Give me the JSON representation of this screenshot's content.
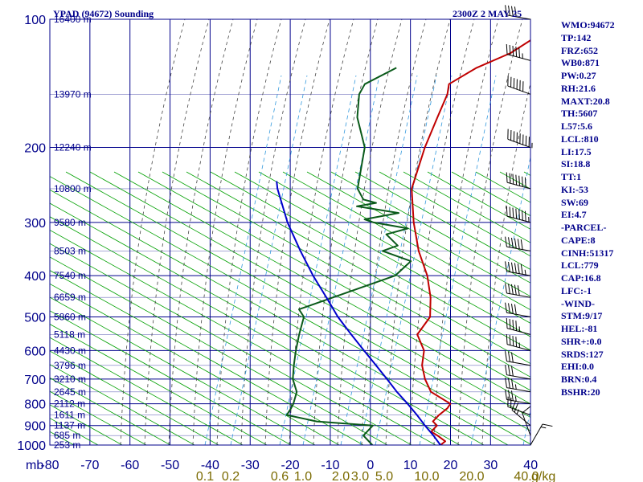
{
  "header": {
    "title": "YPAD (94672) Sounding",
    "time": "2300Z  2 MAY 25"
  },
  "stats": [
    "WMO:94672",
    "TP:142",
    "FRZ:652",
    "WB0:871",
    "PW:0.27",
    "RH:21.6",
    "MAXT:20.8",
    "TH:5607",
    "L57:5.6",
    "LCL:810",
    "LI:17.5",
    "SI:18.8",
    "TT:1",
    "KI:-53",
    "SW:69",
    "EI:4.7",
    "-PARCEL-",
    "CAPE:8",
    "CINH:51317",
    "LCL:779",
    "CAP:16.8",
    "LFC:-1",
    "-WIND-",
    "STM:9/17",
    "HEL:-81",
    "SHR+:0.0",
    "SRDS:127",
    "EHI:0.0",
    "BRN:0.4",
    "BSHR:20"
  ],
  "colors": {
    "frame": "#00008b",
    "isotherm": "#0000cd",
    "dry_adiabat": "#00a000",
    "moist_adiabat": "#444444",
    "mixing_ratio": "#3399dd",
    "temperature": "#c00000",
    "dewpoint": "#0a5a1a",
    "parcel": "#0000cc"
  },
  "chart_data": {
    "type": "line",
    "title": "YPAD (94672) Sounding",
    "skew_t_log_p": true,
    "x_axis": {
      "quantity": "temperature_C",
      "range": [
        -80,
        40
      ],
      "tick_values": [
        -80,
        -70,
        -60,
        -50,
        -40,
        -30,
        -20,
        -10,
        0,
        10,
        20,
        30,
        40
      ],
      "tick_labels": [
        "-80",
        "-70",
        "-60",
        "-50",
        "-40",
        "-30",
        "-20",
        "-10",
        "0",
        "10",
        "20",
        "30",
        "40"
      ],
      "left_label": "mb"
    },
    "y_axis": {
      "quantity": "pressure_hPa",
      "scale": "log",
      "range": [
        1000,
        100
      ],
      "tick_values": [
        100,
        200,
        300,
        400,
        500,
        600,
        700,
        800,
        900,
        1000
      ],
      "tick_labels": [
        "100",
        "200",
        "300",
        "400",
        "500",
        "600",
        "700",
        "800",
        "900",
        "1000"
      ]
    },
    "height_labels": [
      {
        "p": 100,
        "label": "16400 m"
      },
      {
        "p": 150,
        "label": "13970 m"
      },
      {
        "p": 200,
        "label": "12240 m"
      },
      {
        "p": 250,
        "label": "10800 m"
      },
      {
        "p": 300,
        "label": "9580 m"
      },
      {
        "p": 350,
        "label": "8503 m"
      },
      {
        "p": 400,
        "label": "7540 m"
      },
      {
        "p": 450,
        "label": "6659 m"
      },
      {
        "p": 500,
        "label": "5860 m"
      },
      {
        "p": 550,
        "label": "5118 m"
      },
      {
        "p": 600,
        "label": "4430 m"
      },
      {
        "p": 650,
        "label": "3796 m"
      },
      {
        "p": 700,
        "label": "3210 m"
      },
      {
        "p": 750,
        "label": "2645 m"
      },
      {
        "p": 800,
        "label": "2112 m"
      },
      {
        "p": 850,
        "label": "1611 m"
      },
      {
        "p": 900,
        "label": "1137 m"
      },
      {
        "p": 950,
        "label": "685 m"
      },
      {
        "p": 1000,
        "label": "253 m"
      }
    ],
    "mixing_ratio_labels": [
      {
        "value": 0.1,
        "label": "0.1"
      },
      {
        "value": 0.2,
        "label": "0.2"
      },
      {
        "value": 0.6,
        "label": "0.6"
      },
      {
        "value": 1.0,
        "label": "1.0"
      },
      {
        "value": 2.0,
        "label": "2.0"
      },
      {
        "value": 3.0,
        "label": "3.0"
      },
      {
        "value": 5.0,
        "label": "5.0"
      },
      {
        "value": 10.0,
        "label": "10.0"
      },
      {
        "value": 20.0,
        "label": "20.0"
      },
      {
        "value": 40.0,
        "label": "40.0"
      }
    ],
    "mixing_ratio_unit": "g/kg",
    "series": [
      {
        "kind": "temperature",
        "points": [
          [
            1000,
            17.5
          ],
          [
            980,
            17.8
          ],
          [
            950,
            14.5
          ],
          [
            930,
            12.0
          ],
          [
            900,
            12.0
          ],
          [
            880,
            10.0
          ],
          [
            850,
            10.0
          ],
          [
            820,
            10.5
          ],
          [
            800,
            10.2
          ],
          [
            750,
            2.5
          ],
          [
            700,
            -2.0
          ],
          [
            650,
            -6.0
          ],
          [
            600,
            -9.0
          ],
          [
            550,
            -14.5
          ],
          [
            500,
            -15.5
          ],
          [
            450,
            -20.0
          ],
          [
            400,
            -26.0
          ],
          [
            350,
            -34.0
          ],
          [
            300,
            -42.0
          ],
          [
            250,
            -50.5
          ],
          [
            200,
            -57.0
          ],
          [
            170,
            -61.0
          ],
          [
            150,
            -64.0
          ],
          [
            142,
            -66.0
          ],
          [
            130,
            -63.0
          ],
          [
            120,
            -58.0
          ],
          [
            110,
            -55.5
          ],
          [
            100,
            -55.0
          ]
        ]
      },
      {
        "kind": "dewpoint",
        "points": [
          [
            1000,
            0.5
          ],
          [
            950,
            -4.0
          ],
          [
            900,
            -4.0
          ],
          [
            880,
            -19.0
          ],
          [
            850,
            -28.0
          ],
          [
            820,
            -28.5
          ],
          [
            800,
            -29.0
          ],
          [
            750,
            -31.0
          ],
          [
            700,
            -35.0
          ],
          [
            650,
            -38.0
          ],
          [
            600,
            -41.0
          ],
          [
            550,
            -44.0
          ],
          [
            500,
            -47.0
          ],
          [
            480,
            -50.0
          ],
          [
            400,
            -34.0
          ],
          [
            370,
            -33.5
          ],
          [
            350,
            -43.0
          ],
          [
            340,
            -40.5
          ],
          [
            320,
            -46.0
          ],
          [
            310,
            -42.0
          ],
          [
            300,
            -52.0
          ],
          [
            295,
            -55.0
          ],
          [
            285,
            -48.0
          ],
          [
            275,
            -60.0
          ],
          [
            270,
            -56.0
          ],
          [
            265,
            -60.0
          ],
          [
            250,
            -64.0
          ],
          [
            200,
            -72.0
          ],
          [
            170,
            -81.0
          ],
          [
            150,
            -86.0
          ],
          [
            142,
            -87.0
          ],
          [
            130,
            -83.0
          ]
        ]
      },
      {
        "kind": "parcel",
        "points": [
          [
            1000,
            17.5
          ],
          [
            950,
            13.5
          ],
          [
            900,
            9.0
          ],
          [
            850,
            4.5
          ],
          [
            800,
            -0.5
          ],
          [
            750,
            -6.0
          ],
          [
            700,
            -11.5
          ],
          [
            650,
            -17.5
          ],
          [
            600,
            -24.0
          ],
          [
            550,
            -31.0
          ],
          [
            500,
            -38.5
          ],
          [
            450,
            -46.0
          ],
          [
            400,
            -54.5
          ],
          [
            350,
            -63.5
          ],
          [
            300,
            -73.5
          ],
          [
            250,
            -84.0
          ],
          [
            240,
            -86.0
          ]
        ]
      }
    ],
    "wind_profile": [
      {
        "p": 1000,
        "dir": 30,
        "spd": 5
      },
      {
        "p": 950,
        "dir": 340,
        "spd": 10
      },
      {
        "p": 900,
        "dir": 310,
        "spd": 15
      },
      {
        "p": 850,
        "dir": 290,
        "spd": 20
      },
      {
        "p": 800,
        "dir": 280,
        "spd": 25
      },
      {
        "p": 750,
        "dir": 280,
        "spd": 25
      },
      {
        "p": 700,
        "dir": 280,
        "spd": 30
      },
      {
        "p": 650,
        "dir": 280,
        "spd": 30
      },
      {
        "p": 600,
        "dir": 285,
        "spd": 35
      },
      {
        "p": 550,
        "dir": 285,
        "spd": 35
      },
      {
        "p": 500,
        "dir": 280,
        "spd": 40
      },
      {
        "p": 450,
        "dir": 280,
        "spd": 50
      },
      {
        "p": 400,
        "dir": 280,
        "spd": 55
      },
      {
        "p": 350,
        "dir": 280,
        "spd": 60
      },
      {
        "p": 300,
        "dir": 285,
        "spd": 65
      },
      {
        "p": 250,
        "dir": 285,
        "spd": 70
      },
      {
        "p": 200,
        "dir": 290,
        "spd": 75
      },
      {
        "p": 150,
        "dir": 290,
        "spd": 60
      },
      {
        "p": 125,
        "dir": 285,
        "spd": 45
      },
      {
        "p": 100,
        "dir": 280,
        "spd": 40
      }
    ]
  }
}
